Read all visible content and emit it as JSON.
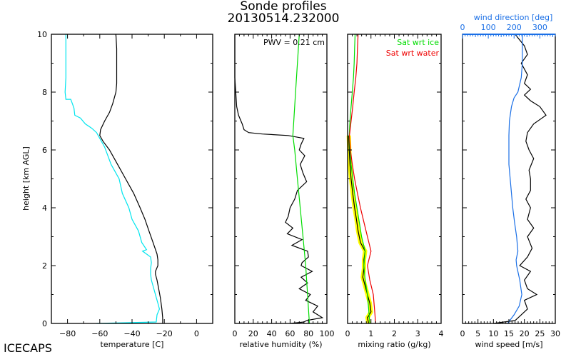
{
  "title": "Sonde profiles",
  "subtitle": "20130514.232000",
  "footer": "ICECAPS",
  "ylabel": "height [km AGL]",
  "colors": {
    "temperature": "#000000",
    "dewpoint": "#00e5ee",
    "rh": "#000000",
    "rh_ice": "#00dd00",
    "mixing": "#000000",
    "mixing_band": "#ffff00",
    "sat_ice": "#00dd00",
    "sat_water": "#ee0000",
    "wind_speed": "#000000",
    "wind_dir": "#1a6fe6"
  },
  "chart_data": [
    {
      "type": "line",
      "id": "temperature",
      "xlabel": "temperature [C]",
      "ylabel": "height [km AGL]",
      "xlim": [
        -90,
        10
      ],
      "ylim": [
        0,
        10
      ],
      "xticks": [
        -80,
        -60,
        -40,
        -20,
        0
      ],
      "yticks": [
        0,
        2,
        4,
        6,
        8,
        10
      ],
      "series": [
        {
          "name": "temperature",
          "y": [
            0,
            0.2,
            0.5,
            0.7,
            0.9,
            1.2,
            1.5,
            1.7,
            1.8,
            2.0,
            2.2,
            2.4,
            2.8,
            3.2,
            3.6,
            4.0,
            4.5,
            5.0,
            5.5,
            6.0,
            6.3,
            6.5,
            6.7,
            7.0,
            7.3,
            7.6,
            8.0,
            8.3,
            8.6,
            9.0,
            9.5,
            10.0
          ],
          "x": [
            -21,
            -21,
            -21.5,
            -22,
            -22.5,
            -23.5,
            -24.5,
            -25.5,
            -25.5,
            -24,
            -24,
            -24.5,
            -27,
            -29.5,
            -32,
            -35,
            -39,
            -44,
            -49,
            -54,
            -58,
            -60,
            -59.5,
            -57,
            -54,
            -52,
            -50,
            -49.5,
            -49.5,
            -49.5,
            -49.5,
            -50
          ]
        },
        {
          "name": "dewpoint",
          "y": [
            0,
            0.05,
            0.3,
            0.5,
            0.7,
            0.9,
            1.2,
            1.5,
            1.7,
            1.9,
            2.1,
            2.3,
            2.5,
            2.55,
            2.8,
            3.2,
            3.6,
            4.0,
            4.5,
            5.0,
            5.5,
            5.8,
            6.1,
            6.4,
            6.6,
            6.75,
            6.9,
            7.1,
            7.2,
            7.45,
            7.6,
            7.75,
            7.75,
            8.0,
            8.5,
            9.0,
            9.5,
            10.0
          ],
          "x": [
            -62,
            -25,
            -24.5,
            -23,
            -24,
            -25,
            -26.5,
            -28,
            -28.5,
            -28.5,
            -28,
            -28.5,
            -33.5,
            -31,
            -34,
            -36,
            -40,
            -42,
            -46,
            -48,
            -53,
            -55,
            -57,
            -60,
            -62,
            -65,
            -69,
            -72,
            -75.5,
            -76,
            -77,
            -78,
            -81,
            -81.5,
            -81,
            -81,
            -81,
            -81
          ]
        }
      ]
    },
    {
      "type": "line",
      "id": "relative-humidity",
      "xlabel": "relative humidity (%)",
      "xlim": [
        0,
        100
      ],
      "ylim": [
        0,
        10
      ],
      "xticks": [
        0,
        20,
        40,
        60,
        80,
        100
      ],
      "annotation": "PWV = 0.21 cm",
      "series": [
        {
          "name": "rh",
          "y": [
            0,
            0.05,
            0.1,
            0.2,
            0.4,
            0.6,
            0.8,
            1.0,
            1.2,
            1.4,
            1.6,
            1.8,
            2.0,
            2.1,
            2.3,
            2.5,
            2.7,
            2.9,
            3.1,
            3.3,
            3.5,
            3.7,
            4.0,
            4.3,
            4.6,
            4.9,
            5.2,
            5.5,
            5.8,
            6.0,
            6.2,
            6.4,
            6.5,
            6.55,
            6.6,
            6.7,
            6.9,
            7.2,
            7.5,
            8.0,
            8.5,
            10.0
          ],
          "x": [
            60,
            75,
            78,
            95,
            85,
            90,
            77,
            82,
            70,
            79,
            72,
            84,
            72,
            73,
            80,
            79,
            62,
            73,
            57,
            63,
            55,
            58,
            60,
            65,
            68,
            78,
            74,
            71,
            76,
            70,
            72,
            75,
            58,
            30,
            15,
            10,
            8,
            4,
            2,
            1,
            0,
            0
          ]
        },
        {
          "name": "rh_wrt_ice",
          "y": [
            0,
            1,
            2,
            3,
            4,
            5,
            6,
            6.5,
            7,
            8,
            9,
            10
          ],
          "x": [
            81,
            79,
            77,
            74,
            71,
            68,
            65,
            63,
            64,
            66,
            68,
            70
          ]
        }
      ]
    },
    {
      "type": "line",
      "id": "mixing-ratio",
      "xlabel": "mixing ratio (g/kg)",
      "xlim": [
        0,
        4
      ],
      "ylim": [
        0,
        10
      ],
      "xticks": [
        0,
        1,
        2,
        3,
        4
      ],
      "legend": [
        "Sat wrt ice",
        "Sat wrt water"
      ],
      "legend_position": "top-right",
      "series": [
        {
          "name": "mixing_ratio",
          "y": [
            0,
            0.2,
            0.4,
            0.7,
            1.0,
            1.3,
            1.6,
            1.9,
            2.2,
            2.5,
            2.8,
            3.2,
            3.6,
            4.0,
            4.5,
            5.0,
            5.5,
            6.0,
            6.5
          ],
          "x": [
            0.9,
            0.85,
            1.0,
            0.95,
            0.85,
            0.75,
            0.65,
            0.7,
            0.7,
            0.75,
            0.55,
            0.45,
            0.38,
            0.3,
            0.22,
            0.15,
            0.1,
            0.07,
            0.05
          ]
        },
        {
          "name": "sat_wrt_ice",
          "y": [
            0,
            0.5,
            1.0,
            1.5,
            2.0,
            2.5,
            3.0,
            3.5,
            4.0,
            4.5,
            5.0,
            5.5,
            6.0,
            6.5,
            7.0,
            7.5,
            8.0,
            8.5,
            9.0,
            9.5,
            10.0
          ],
          "x": [
            0.95,
            0.9,
            0.85,
            0.75,
            0.7,
            0.75,
            0.6,
            0.5,
            0.4,
            0.3,
            0.22,
            0.15,
            0.1,
            0.07,
            0.1,
            0.15,
            0.2,
            0.25,
            0.28,
            0.3,
            0.32
          ]
        },
        {
          "name": "sat_wrt_water",
          "y": [
            0,
            0.5,
            1.0,
            1.5,
            2.0,
            2.5,
            3.0,
            3.5,
            4.0,
            4.5,
            5.0,
            5.5,
            6.0,
            6.5,
            7.0,
            7.5,
            8.0,
            8.5,
            9.0,
            9.5,
            10.0
          ],
          "x": [
            1.2,
            1.15,
            1.1,
            0.95,
            0.85,
            1.0,
            0.85,
            0.7,
            0.55,
            0.42,
            0.3,
            0.2,
            0.12,
            0.08,
            0.15,
            0.22,
            0.28,
            0.35,
            0.4,
            0.42,
            0.45
          ]
        }
      ]
    },
    {
      "type": "line",
      "id": "wind",
      "xlabel": "wind speed [m/s]",
      "x2label": "wind direction [deg]",
      "xlim": [
        0,
        30
      ],
      "x2lim": [
        0,
        360
      ],
      "ylim": [
        0,
        10
      ],
      "xticks": [
        0,
        5,
        10,
        15,
        20,
        25,
        30
      ],
      "x2ticks": [
        0,
        100,
        200,
        300
      ],
      "series": [
        {
          "name": "wind_speed",
          "y": [
            0,
            0.1,
            0.3,
            0.5,
            0.8,
            1.0,
            1.2,
            1.5,
            1.8,
            2.0,
            2.3,
            2.6,
            3.0,
            3.3,
            3.6,
            4.0,
            4.3,
            4.6,
            5.0,
            5.3,
            5.7,
            6.0,
            6.3,
            6.6,
            6.9,
            7.2,
            7.5,
            7.7,
            7.9,
            8.1,
            8.3,
            8.6,
            9.0,
            9.3,
            9.6,
            10.0
          ],
          "x": [
            10,
            17,
            19,
            21,
            20,
            24,
            21,
            20,
            22,
            18.5,
            21,
            22.5,
            21,
            23,
            21,
            22,
            20.5,
            22,
            22,
            21.5,
            23,
            21.5,
            20.5,
            21,
            23,
            27,
            25,
            22,
            20,
            22,
            20,
            21,
            19,
            21,
            20,
            17
          ]
        },
        {
          "name": "wind_direction",
          "y": [
            0,
            0.3,
            0.6,
            1.0,
            1.5,
            2.0,
            2.2,
            2.5,
            3.0,
            3.5,
            4.0,
            4.5,
            5.0,
            5.5,
            6.0,
            6.5,
            7.0,
            7.5,
            7.8,
            8.0,
            8.5,
            9.0,
            9.5,
            10.0
          ],
          "x": [
            175,
            200,
            220,
            230,
            222,
            210,
            208,
            215,
            210,
            202,
            195,
            190,
            185,
            180,
            180,
            180,
            182,
            190,
            200,
            215,
            228,
            232,
            232,
            232
          ]
        }
      ]
    }
  ]
}
